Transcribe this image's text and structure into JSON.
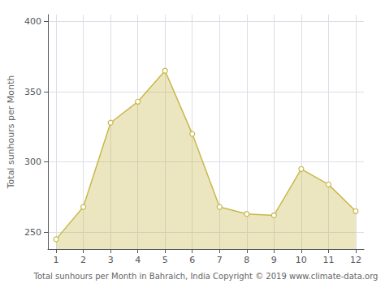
{
  "chart_data": {
    "type": "area",
    "x": [
      1,
      2,
      3,
      4,
      5,
      6,
      7,
      8,
      9,
      10,
      11,
      12
    ],
    "values": [
      245,
      268,
      328,
      343,
      365,
      320,
      268,
      263,
      262,
      295,
      284,
      265
    ],
    "xlim": [
      0.7,
      12.3
    ],
    "xticks": [
      1,
      2,
      3,
      4,
      5,
      6,
      7,
      8,
      9,
      10,
      11,
      12
    ],
    "ylim": [
      238,
      405
    ],
    "yticks": [
      250,
      300,
      350,
      400
    ],
    "xlabel": "Total sunhours per Month in Bahraich, India Copyright © 2019 www.climate-data.org",
    "ylabel": "Total sunhours per Month",
    "color": "#c8b84a",
    "marker": "circle",
    "grid": true
  }
}
